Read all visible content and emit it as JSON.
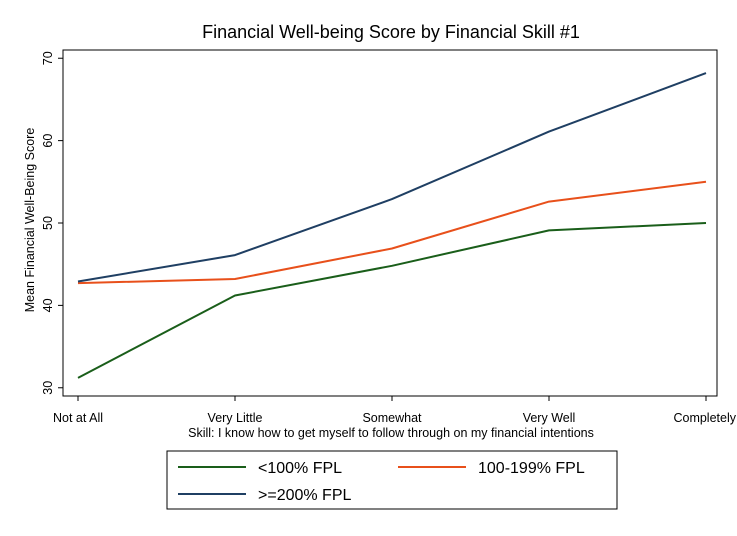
{
  "chart_data": {
    "type": "line",
    "title": "Financial Well-being Score by Financial Skill #1",
    "xlabel": "Skill: I know how to get myself to follow through on my financial intentions",
    "ylabel": "Mean Financial Well-Being Score",
    "categories": [
      "Not at All",
      "Very Little",
      "Somewhat",
      "Very Well",
      "Completely"
    ],
    "ylim": [
      29,
      71
    ],
    "yticks": [
      30,
      40,
      50,
      60,
      70
    ],
    "grid": false,
    "legend": "bottom",
    "series": [
      {
        "name": "<100% FPL",
        "color": "#1a5e1a",
        "values": [
          31.2,
          41.2,
          44.8,
          49.1,
          50.0
        ]
      },
      {
        "name": "100-199% FPL",
        "color": "#e8501b",
        "values": [
          42.7,
          43.2,
          46.9,
          52.6,
          55.0
        ]
      },
      {
        "name": ">=200% FPL",
        "color": "#1f3f63",
        "values": [
          42.9,
          46.1,
          52.9,
          61.1,
          68.2
        ]
      }
    ]
  }
}
